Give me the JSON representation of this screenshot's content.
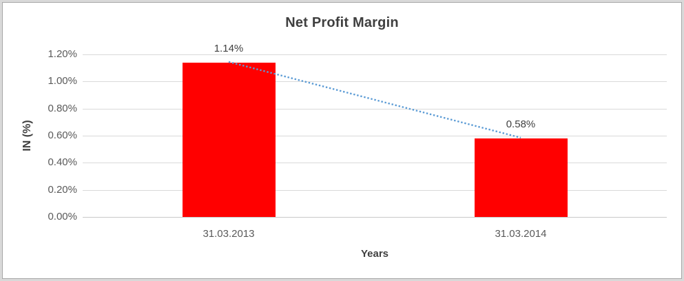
{
  "chart_data": {
    "type": "bar",
    "title": "Net Profit Margin",
    "xlabel": "Years",
    "ylabel": "IN (%)",
    "categories": [
      "31.03.2013",
      "31.03.2014"
    ],
    "values": [
      1.14,
      0.58
    ],
    "data_labels": [
      "1.14%",
      "0.58%"
    ],
    "yticks": [
      "0.00%",
      "0.20%",
      "0.40%",
      "0.60%",
      "0.80%",
      "1.00%",
      "1.20%"
    ],
    "ylim": [
      0,
      1.2
    ],
    "grid": true,
    "legend_position": "none",
    "trendline": {
      "style": "dotted",
      "connects": [
        "1.14%",
        "0.58%"
      ],
      "color": "#5B9BD5"
    },
    "colors": {
      "bar": "#FF0000",
      "trendline": "#5B9BD5",
      "gridline": "#D9D9D9",
      "title_text": "#3F3F3F",
      "tick_text": "#595959",
      "frame_border": "#A6A6A6",
      "frame_margin": "#D9D9D9"
    }
  }
}
